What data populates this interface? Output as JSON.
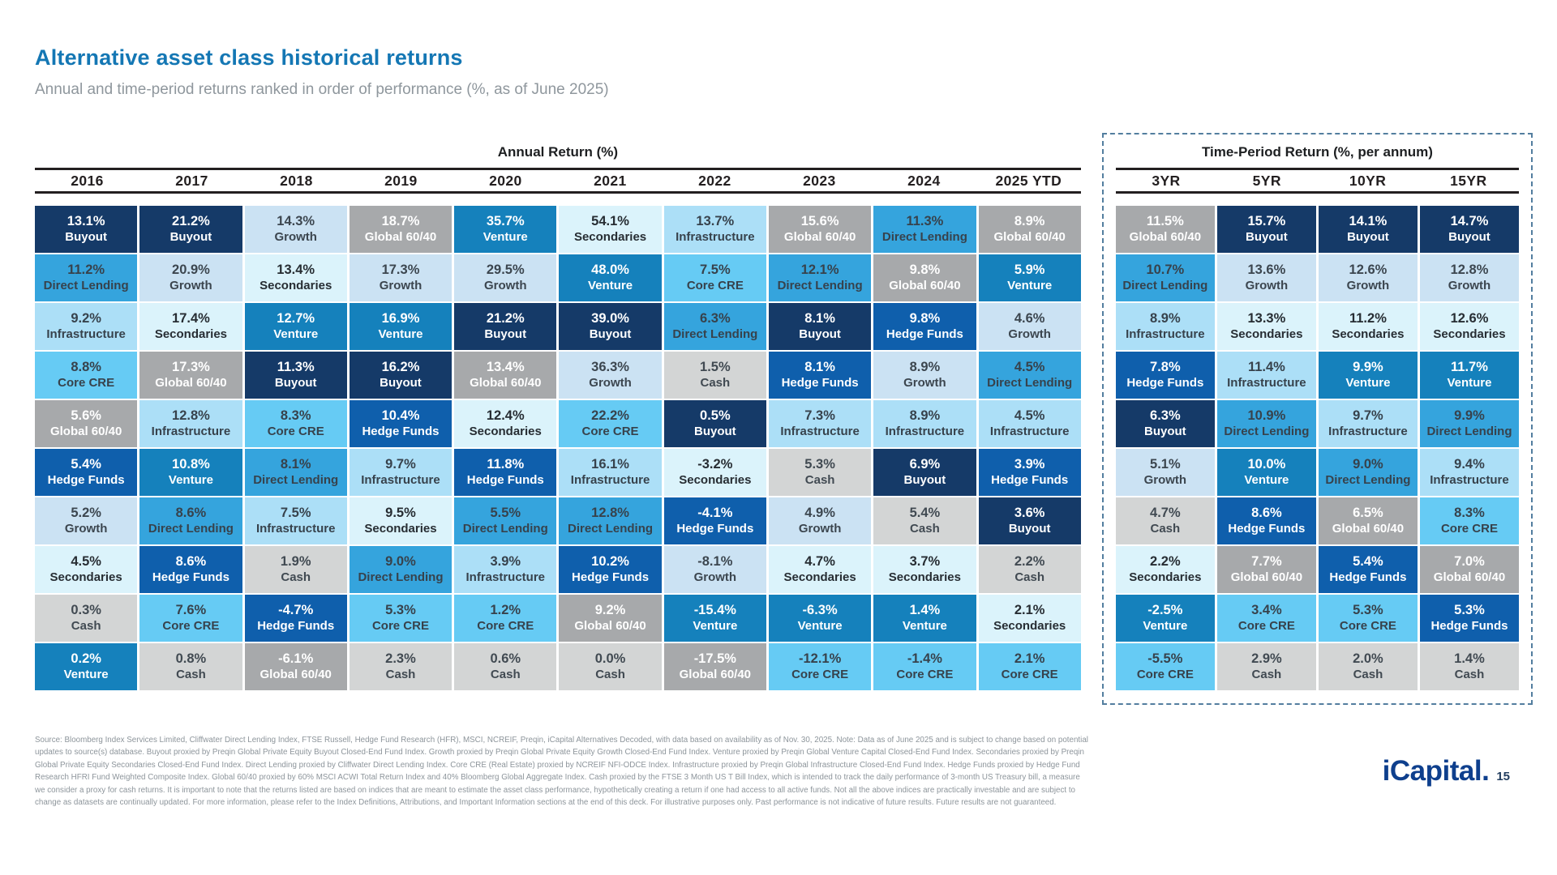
{
  "asset_classes": {
    "Buyout": {
      "bg": "#153A68",
      "fg": "#FFFFFF"
    },
    "Growth": {
      "bg": "#CBE2F3",
      "fg": "#3C464F"
    },
    "Venture": {
      "bg": "#1581BC",
      "fg": "#FFFFFF"
    },
    "Secondaries": {
      "bg": "#DBF3FB",
      "fg": "#272D33"
    },
    "Direct Lending": {
      "bg": "#35A4DD",
      "fg": "#37424C"
    },
    "Core CRE": {
      "bg": "#66CBF4",
      "fg": "#37424C"
    },
    "Infrastructure": {
      "bg": "#ACDFF7",
      "fg": "#37424C"
    },
    "Hedge Funds": {
      "bg": "#0F5FAC",
      "fg": "#FFFFFF"
    },
    "Global 60/40": {
      "bg": "#A7A9AB",
      "fg": "#FFFFFF"
    },
    "Cash": {
      "bg": "#D3D5D5",
      "fg": "#414A52"
    }
  },
  "chart_data": {
    "type": "table",
    "title": "Alternative asset class historical returns",
    "subtitle": "Annual and time-period returns ranked in order of performance (%, as of June 2025)",
    "layout_hint": "quilt chart: each column ranked best-to-worst top-to-bottom; cell = [return, asset class]",
    "sections": [
      {
        "id": "annual",
        "title": "Annual Return (%)",
        "columns": [
          "2016",
          "2017",
          "2018",
          "2019",
          "2020",
          "2021",
          "2022",
          "2023",
          "2024",
          "2025 YTD"
        ],
        "cells": [
          [
            [
              "13.1%",
              "Buyout"
            ],
            [
              "11.2%",
              "Direct Lending"
            ],
            [
              "9.2%",
              "Infrastructure"
            ],
            [
              "8.8%",
              "Core CRE"
            ],
            [
              "5.6%",
              "Global 60/40"
            ],
            [
              "5.4%",
              "Hedge Funds"
            ],
            [
              "5.2%",
              "Growth"
            ],
            [
              "4.5%",
              "Secondaries"
            ],
            [
              "0.3%",
              "Cash"
            ],
            [
              "0.2%",
              "Venture"
            ]
          ],
          [
            [
              "21.2%",
              "Buyout"
            ],
            [
              "20.9%",
              "Growth"
            ],
            [
              "17.4%",
              "Secondaries"
            ],
            [
              "17.3%",
              "Global 60/40"
            ],
            [
              "12.8%",
              "Infrastructure"
            ],
            [
              "10.8%",
              "Venture"
            ],
            [
              "8.6%",
              "Direct Lending"
            ],
            [
              "8.6%",
              "Hedge Funds"
            ],
            [
              "7.6%",
              "Core CRE"
            ],
            [
              "0.8%",
              "Cash"
            ]
          ],
          [
            [
              "14.3%",
              "Growth"
            ],
            [
              "13.4%",
              "Secondaries"
            ],
            [
              "12.7%",
              "Venture"
            ],
            [
              "11.3%",
              "Buyout"
            ],
            [
              "8.3%",
              "Core CRE"
            ],
            [
              "8.1%",
              "Direct Lending"
            ],
            [
              "7.5%",
              "Infrastructure"
            ],
            [
              "1.9%",
              "Cash"
            ],
            [
              "-4.7%",
              "Hedge Funds"
            ],
            [
              "-6.1%",
              "Global 60/40"
            ]
          ],
          [
            [
              "18.7%",
              "Global 60/40"
            ],
            [
              "17.3%",
              "Growth"
            ],
            [
              "16.9%",
              "Venture"
            ],
            [
              "16.2%",
              "Buyout"
            ],
            [
              "10.4%",
              "Hedge Funds"
            ],
            [
              "9.7%",
              "Infrastructure"
            ],
            [
              "9.5%",
              "Secondaries"
            ],
            [
              "9.0%",
              "Direct Lending"
            ],
            [
              "5.3%",
              "Core CRE"
            ],
            [
              "2.3%",
              "Cash"
            ]
          ],
          [
            [
              "35.7%",
              "Venture"
            ],
            [
              "29.5%",
              "Growth"
            ],
            [
              "21.2%",
              "Buyout"
            ],
            [
              "13.4%",
              "Global 60/40"
            ],
            [
              "12.4%",
              "Secondaries"
            ],
            [
              "11.8%",
              "Hedge Funds"
            ],
            [
              "5.5%",
              "Direct Lending"
            ],
            [
              "3.9%",
              "Infrastructure"
            ],
            [
              "1.2%",
              "Core CRE"
            ],
            [
              "0.6%",
              "Cash"
            ]
          ],
          [
            [
              "54.1%",
              "Secondaries"
            ],
            [
              "48.0%",
              "Venture"
            ],
            [
              "39.0%",
              "Buyout"
            ],
            [
              "36.3%",
              "Growth"
            ],
            [
              "22.2%",
              "Core CRE"
            ],
            [
              "16.1%",
              "Infrastructure"
            ],
            [
              "12.8%",
              "Direct Lending"
            ],
            [
              "10.2%",
              "Hedge Funds"
            ],
            [
              "9.2%",
              "Global 60/40"
            ],
            [
              "0.0%",
              "Cash"
            ]
          ],
          [
            [
              "13.7%",
              "Infrastructure"
            ],
            [
              "7.5%",
              "Core CRE"
            ],
            [
              "6.3%",
              "Direct Lending"
            ],
            [
              "1.5%",
              "Cash"
            ],
            [
              "0.5%",
              "Buyout"
            ],
            [
              "-3.2%",
              "Secondaries"
            ],
            [
              "-4.1%",
              "Hedge Funds"
            ],
            [
              "-8.1%",
              "Growth"
            ],
            [
              "-15.4%",
              "Venture"
            ],
            [
              "-17.5%",
              "Global 60/40"
            ]
          ],
          [
            [
              "15.6%",
              "Global 60/40"
            ],
            [
              "12.1%",
              "Direct Lending"
            ],
            [
              "8.1%",
              "Buyout"
            ],
            [
              "8.1%",
              "Hedge Funds"
            ],
            [
              "7.3%",
              "Infrastructure"
            ],
            [
              "5.3%",
              "Cash"
            ],
            [
              "4.9%",
              "Growth"
            ],
            [
              "4.7%",
              "Secondaries"
            ],
            [
              "-6.3%",
              "Venture"
            ],
            [
              "-12.1%",
              "Core CRE"
            ]
          ],
          [
            [
              "11.3%",
              "Direct Lending"
            ],
            [
              "9.8%",
              "Global 60/40"
            ],
            [
              "9.8%",
              "Hedge Funds"
            ],
            [
              "8.9%",
              "Growth"
            ],
            [
              "8.9%",
              "Infrastructure"
            ],
            [
              "6.9%",
              "Buyout"
            ],
            [
              "5.4%",
              "Cash"
            ],
            [
              "3.7%",
              "Secondaries"
            ],
            [
              "1.4%",
              "Venture"
            ],
            [
              "-1.4%",
              "Core CRE"
            ]
          ],
          [
            [
              "8.9%",
              "Global 60/40"
            ],
            [
              "5.9%",
              "Venture"
            ],
            [
              "4.6%",
              "Growth"
            ],
            [
              "4.5%",
              "Direct Lending"
            ],
            [
              "4.5%",
              "Infrastructure"
            ],
            [
              "3.9%",
              "Hedge Funds"
            ],
            [
              "3.6%",
              "Buyout"
            ],
            [
              "2.2%",
              "Cash"
            ],
            [
              "2.1%",
              "Secondaries"
            ],
            [
              "2.1%",
              "Core CRE"
            ]
          ]
        ]
      },
      {
        "id": "period",
        "title": "Time-Period Return (%, per annum)",
        "columns": [
          "3YR",
          "5YR",
          "10YR",
          "15YR"
        ],
        "cells": [
          [
            [
              "11.5%",
              "Global 60/40"
            ],
            [
              "10.7%",
              "Direct Lending"
            ],
            [
              "8.9%",
              "Infrastructure"
            ],
            [
              "7.8%",
              "Hedge Funds"
            ],
            [
              "6.3%",
              "Buyout"
            ],
            [
              "5.1%",
              "Growth"
            ],
            [
              "4.7%",
              "Cash"
            ],
            [
              "2.2%",
              "Secondaries"
            ],
            [
              "-2.5%",
              "Venture"
            ],
            [
              "-5.5%",
              "Core CRE"
            ]
          ],
          [
            [
              "15.7%",
              "Buyout"
            ],
            [
              "13.6%",
              "Growth"
            ],
            [
              "13.3%",
              "Secondaries"
            ],
            [
              "11.4%",
              "Infrastructure"
            ],
            [
              "10.9%",
              "Direct Lending"
            ],
            [
              "10.0%",
              "Venture"
            ],
            [
              "8.6%",
              "Hedge Funds"
            ],
            [
              "7.7%",
              "Global 60/40"
            ],
            [
              "3.4%",
              "Core CRE"
            ],
            [
              "2.9%",
              "Cash"
            ]
          ],
          [
            [
              "14.1%",
              "Buyout"
            ],
            [
              "12.6%",
              "Growth"
            ],
            [
              "11.2%",
              "Secondaries"
            ],
            [
              "9.9%",
              "Venture"
            ],
            [
              "9.7%",
              "Infrastructure"
            ],
            [
              "9.0%",
              "Direct Lending"
            ],
            [
              "6.5%",
              "Global 60/40"
            ],
            [
              "5.4%",
              "Hedge Funds"
            ],
            [
              "5.3%",
              "Core CRE"
            ],
            [
              "2.0%",
              "Cash"
            ]
          ],
          [
            [
              "14.7%",
              "Buyout"
            ],
            [
              "12.8%",
              "Growth"
            ],
            [
              "12.6%",
              "Secondaries"
            ],
            [
              "11.7%",
              "Venture"
            ],
            [
              "9.9%",
              "Direct Lending"
            ],
            [
              "9.4%",
              "Infrastructure"
            ],
            [
              "8.3%",
              "Core CRE"
            ],
            [
              "7.0%",
              "Global 60/40"
            ],
            [
              "5.3%",
              "Hedge Funds"
            ],
            [
              "1.4%",
              "Cash"
            ]
          ]
        ]
      }
    ]
  },
  "footer": {
    "lines": [
      "Source: Bloomberg Index Services Limited, Cliffwater Direct Lending Index, FTSE Russell, Hedge Fund Research (HFR), MSCI, NCREIF, Preqin, iCapital Alternatives Decoded, with data based on availability as of Nov. 30, 2025. Note: Data as of June 2025 and is subject to change based on potential",
      "updates to source(s) database. Buyout proxied by Preqin Global Private Equity Buyout Closed-End Fund Index. Growth proxied by Preqin Global Private Equity Growth Closed-End Fund Index. Venture proxied by Preqin Global Venture Capital Closed-End Fund Index. Secondaries proxied by Preqin",
      "Global Private Equity Secondaries Closed-End Fund Index. Direct Lending proxied by Cliffwater Direct Lending Index. Core CRE (Real Estate) proxied by NCREIF NFI-ODCE Index. Infrastructure proxied by Preqin Global Infrastructure Closed-End Fund Index. Hedge Funds proxied by Hedge Fund",
      "Research HFRI Fund Weighted Composite Index. Global 60/40 proxied by 60% MSCI ACWI Total Return Index and 40% Bloomberg Global Aggregate Index. Cash proxied by the FTSE 3 Month US T Bill Index, which is intended to track the daily performance of 3-month US Treasury bill, a measure",
      "we consider a proxy for cash returns. It is important to note that the returns listed are based on indices that are meant to estimate the asset class performance, hypothetically creating a return if one had access to all active funds. Not all the above indices are practically investable and are subject to",
      "change as datasets are continually updated. For more information, please refer to the Index Definitions, Attributions, and Important Information sections at the end of this deck. For illustrative purposes only. Past performance is not indicative of future results. Future results are not guaranteed."
    ]
  },
  "brand": {
    "logo": "iCapital.",
    "page_number": "15"
  }
}
